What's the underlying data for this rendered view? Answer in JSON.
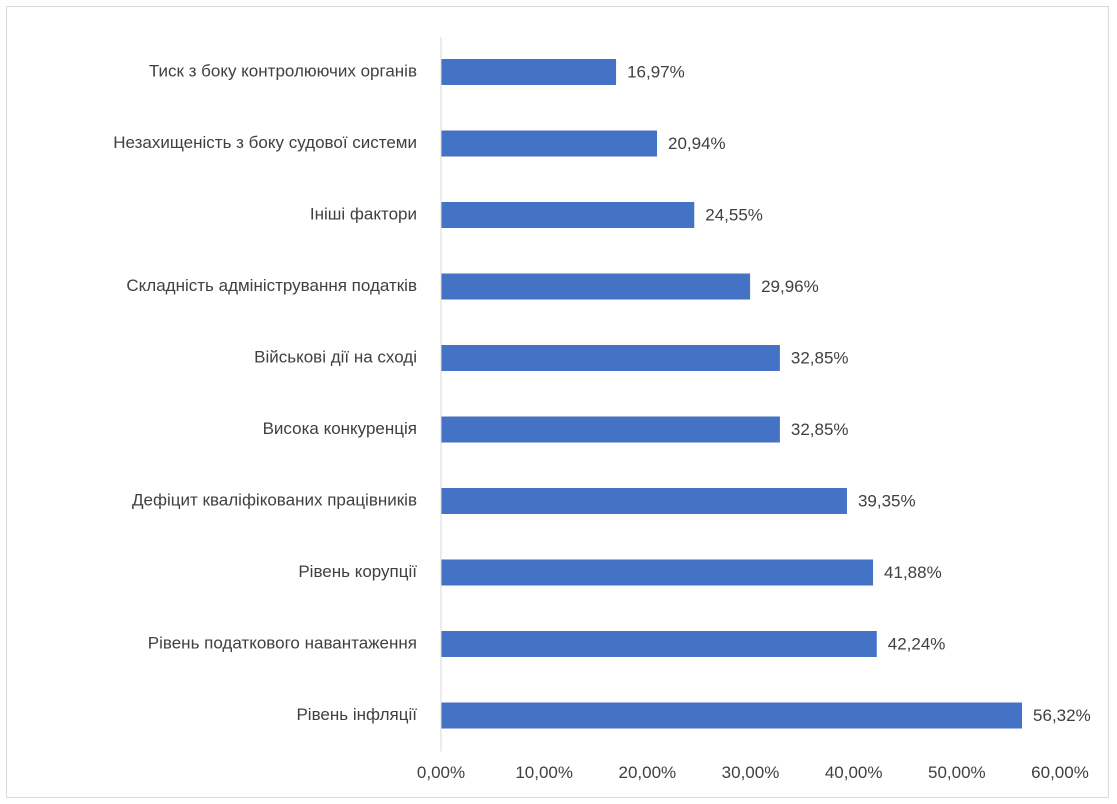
{
  "chart_data": {
    "type": "bar",
    "orientation": "horizontal",
    "categories": [
      "Тиск з боку контролюючих органів",
      "Незахищеність з боку судової системи",
      "Ініші фактори",
      "Складність адміністрування податків",
      "Військові дії на сході",
      "Висока конкуренція",
      "Дефіцит кваліфікованих працівників",
      "Рівень корупції",
      "Рівень податкового навантаження",
      "Рівень інфляції"
    ],
    "values": [
      16.97,
      20.94,
      24.55,
      29.96,
      32.85,
      32.85,
      39.35,
      41.88,
      42.24,
      56.32
    ],
    "value_labels": [
      "16,97%",
      "20,94%",
      "24,55%",
      "29,96%",
      "32,85%",
      "32,85%",
      "39,35%",
      "41,88%",
      "42,24%",
      "56,32%"
    ],
    "xlim": [
      0,
      60
    ],
    "x_ticks": [
      0,
      10,
      20,
      30,
      40,
      50,
      60
    ],
    "x_tick_labels": [
      "0,00%",
      "10,00%",
      "20,00%",
      "30,00%",
      "40,00%",
      "50,00%",
      "60,00%"
    ],
    "grid": false,
    "legend": "none",
    "bar_color": "#4472C4"
  }
}
